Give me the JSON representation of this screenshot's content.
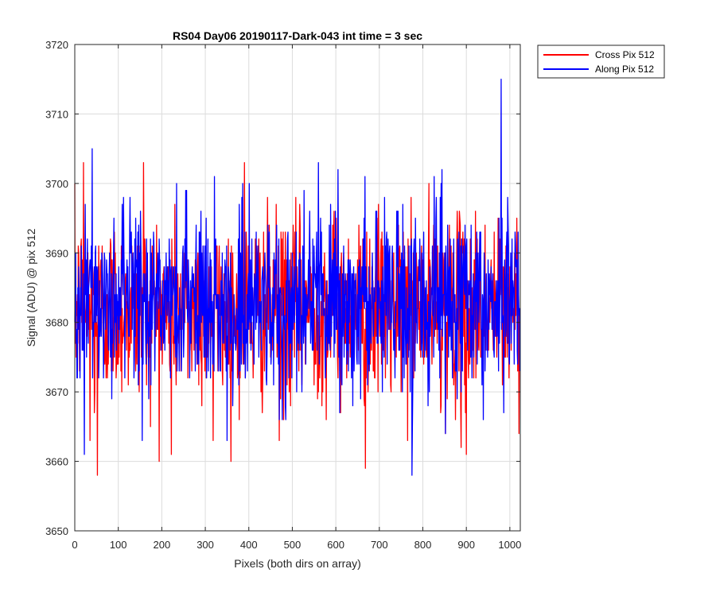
{
  "chart_data": {
    "type": "line",
    "title": "RS04 Day06 20190117-Dark-043 int time = 3 sec",
    "xlabel": "Pixels (both dirs on array)",
    "ylabel": "Signal (ADU) @ pix 512",
    "xlim": [
      0,
      1024
    ],
    "ylim": [
      3650,
      3720
    ],
    "xticks": [
      0,
      100,
      200,
      300,
      400,
      500,
      600,
      700,
      800,
      900,
      1000
    ],
    "yticks": [
      3650,
      3660,
      3670,
      3680,
      3690,
      3700,
      3710,
      3720
    ],
    "grid": true,
    "legend_position": "outside-top-right",
    "series": [
      {
        "name": "Cross Pix 512",
        "color": "#ff0000",
        "n_points": 1024,
        "mean": 3682,
        "range": [
          3658,
          3703
        ],
        "features": [
          {
            "x": 20,
            "y": 3703
          },
          {
            "x": 35,
            "y": 3663
          },
          {
            "x": 45,
            "y": 3667
          },
          {
            "x": 52,
            "y": 3658
          },
          {
            "x": 158,
            "y": 3703
          },
          {
            "x": 222,
            "y": 3661
          },
          {
            "x": 318,
            "y": 3663
          },
          {
            "x": 390,
            "y": 3703
          },
          {
            "x": 470,
            "y": 3663
          },
          {
            "x": 668,
            "y": 3659
          },
          {
            "x": 852,
            "y": 3664
          },
          {
            "x": 888,
            "y": 3662
          },
          {
            "x": 900,
            "y": 3661
          }
        ]
      },
      {
        "name": "Along Pix 512",
        "color": "#0000ff",
        "n_points": 1024,
        "mean": 3683,
        "range": [
          3658,
          3715
        ],
        "features": [
          {
            "x": 22,
            "y": 3661
          },
          {
            "x": 40,
            "y": 3705
          },
          {
            "x": 350,
            "y": 3663
          },
          {
            "x": 470,
            "y": 3666
          },
          {
            "x": 560,
            "y": 3703
          },
          {
            "x": 775,
            "y": 3658
          },
          {
            "x": 980,
            "y": 3715
          }
        ]
      }
    ]
  }
}
